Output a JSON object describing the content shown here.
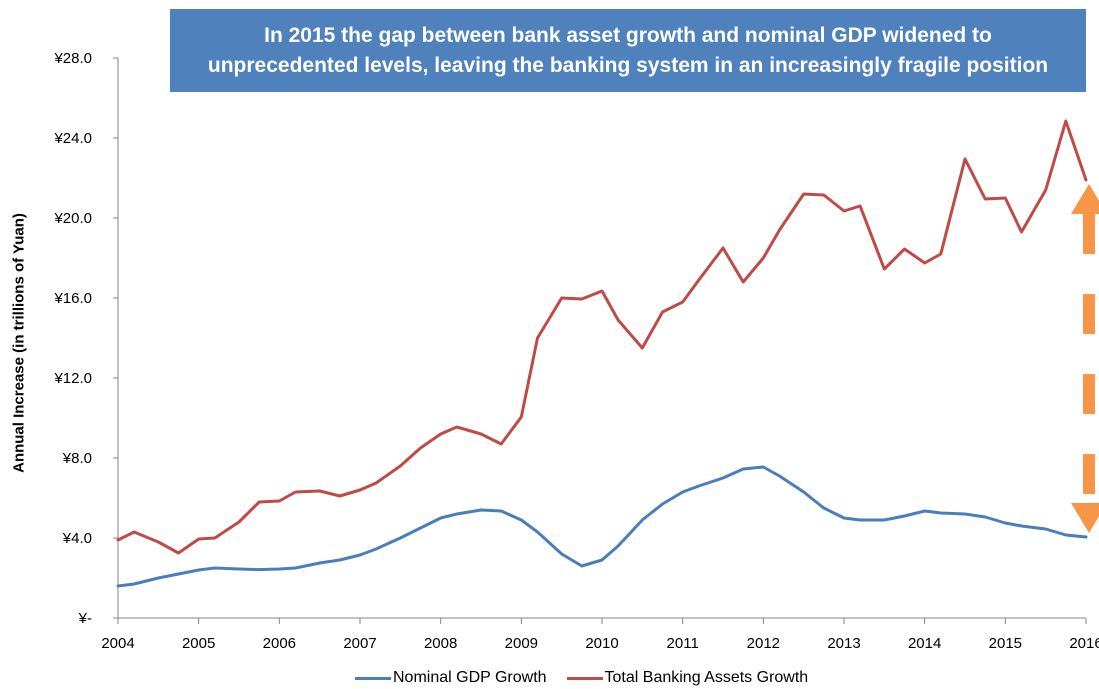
{
  "annotation": {
    "line1": "In 2015 the gap between bank asset growth and nominal GDP widened to",
    "line2": "unprecedented levels, leaving the banking system in an increasingly fragile position",
    "color": "#4f81bd"
  },
  "chart_data": {
    "type": "line",
    "title": "",
    "xlabel": "",
    "ylabel": "Annual Increase (in trillions of Yuan)",
    "xlim": [
      2004,
      2016
    ],
    "ylim": [
      0,
      28
    ],
    "x_ticks": [
      "2004",
      "2005",
      "2006",
      "2007",
      "2008",
      "2009",
      "2010",
      "2011",
      "2012",
      "2013",
      "2014",
      "2015",
      "2016"
    ],
    "y_ticks": [
      "¥-",
      "¥4.0",
      "¥8.0",
      "¥12.0",
      "¥16.0",
      "¥20.0",
      "¥24.0",
      "¥28.0"
    ],
    "grid": false,
    "legend_position": "bottom",
    "series": [
      {
        "name": "Nominal GDP Growth",
        "color": "#4a7ebb",
        "x": [
          2004.0,
          2004.2,
          2004.5,
          2004.75,
          2005.0,
          2005.2,
          2005.5,
          2005.75,
          2006.0,
          2006.2,
          2006.5,
          2006.75,
          2007.0,
          2007.2,
          2007.5,
          2007.75,
          2008.0,
          2008.2,
          2008.5,
          2008.75,
          2009.0,
          2009.2,
          2009.5,
          2009.75,
          2010.0,
          2010.2,
          2010.5,
          2010.75,
          2011.0,
          2011.2,
          2011.5,
          2011.75,
          2012.0,
          2012.2,
          2012.5,
          2012.75,
          2013.0,
          2013.2,
          2013.5,
          2013.75,
          2014.0,
          2014.2,
          2014.5,
          2014.75,
          2015.0,
          2015.2,
          2015.5,
          2015.75,
          2016.0
        ],
        "values": [
          1.6,
          1.7,
          2.0,
          2.2,
          2.4,
          2.5,
          2.45,
          2.42,
          2.45,
          2.5,
          2.75,
          2.9,
          3.15,
          3.45,
          4.0,
          4.5,
          5.0,
          5.2,
          5.4,
          5.35,
          4.9,
          4.3,
          3.2,
          2.6,
          2.9,
          3.6,
          4.9,
          5.7,
          6.3,
          6.6,
          7.0,
          7.45,
          7.55,
          7.1,
          6.3,
          5.5,
          5.0,
          4.9,
          4.9,
          5.1,
          5.35,
          5.25,
          5.2,
          5.05,
          4.75,
          4.6,
          4.45,
          4.15,
          4.05
        ]
      },
      {
        "name": "Total Banking Assets Growth",
        "color": "#be4b48",
        "x": [
          2004.0,
          2004.2,
          2004.5,
          2004.75,
          2005.0,
          2005.2,
          2005.5,
          2005.75,
          2006.0,
          2006.2,
          2006.5,
          2006.75,
          2007.0,
          2007.2,
          2007.5,
          2007.75,
          2008.0,
          2008.2,
          2008.5,
          2008.75,
          2009.0,
          2009.2,
          2009.5,
          2009.75,
          2010.0,
          2010.2,
          2010.5,
          2010.75,
          2011.0,
          2011.2,
          2011.5,
          2011.75,
          2012.0,
          2012.2,
          2012.5,
          2012.75,
          2013.0,
          2013.2,
          2013.5,
          2013.75,
          2014.0,
          2014.2,
          2014.5,
          2014.75,
          2015.0,
          2015.2,
          2015.5,
          2015.75,
          2016.0
        ],
        "values": [
          3.9,
          4.3,
          3.8,
          3.25,
          3.95,
          4.0,
          4.8,
          5.8,
          5.85,
          6.3,
          6.35,
          6.1,
          6.4,
          6.75,
          7.6,
          8.5,
          9.2,
          9.55,
          9.2,
          8.7,
          10.05,
          14.0,
          16.0,
          15.95,
          16.35,
          14.9,
          13.5,
          15.3,
          15.8,
          16.9,
          18.5,
          16.8,
          18.0,
          19.4,
          21.2,
          21.15,
          20.35,
          20.6,
          17.45,
          18.45,
          17.75,
          18.2,
          22.95,
          20.95,
          21.0,
          19.3,
          21.4,
          24.85,
          21.9
        ]
      }
    ],
    "annotation_arrow": {
      "type": "double-headed dashed arrow",
      "color": "#f79646",
      "from_value": 4.05,
      "to_value": 21.9
    }
  }
}
